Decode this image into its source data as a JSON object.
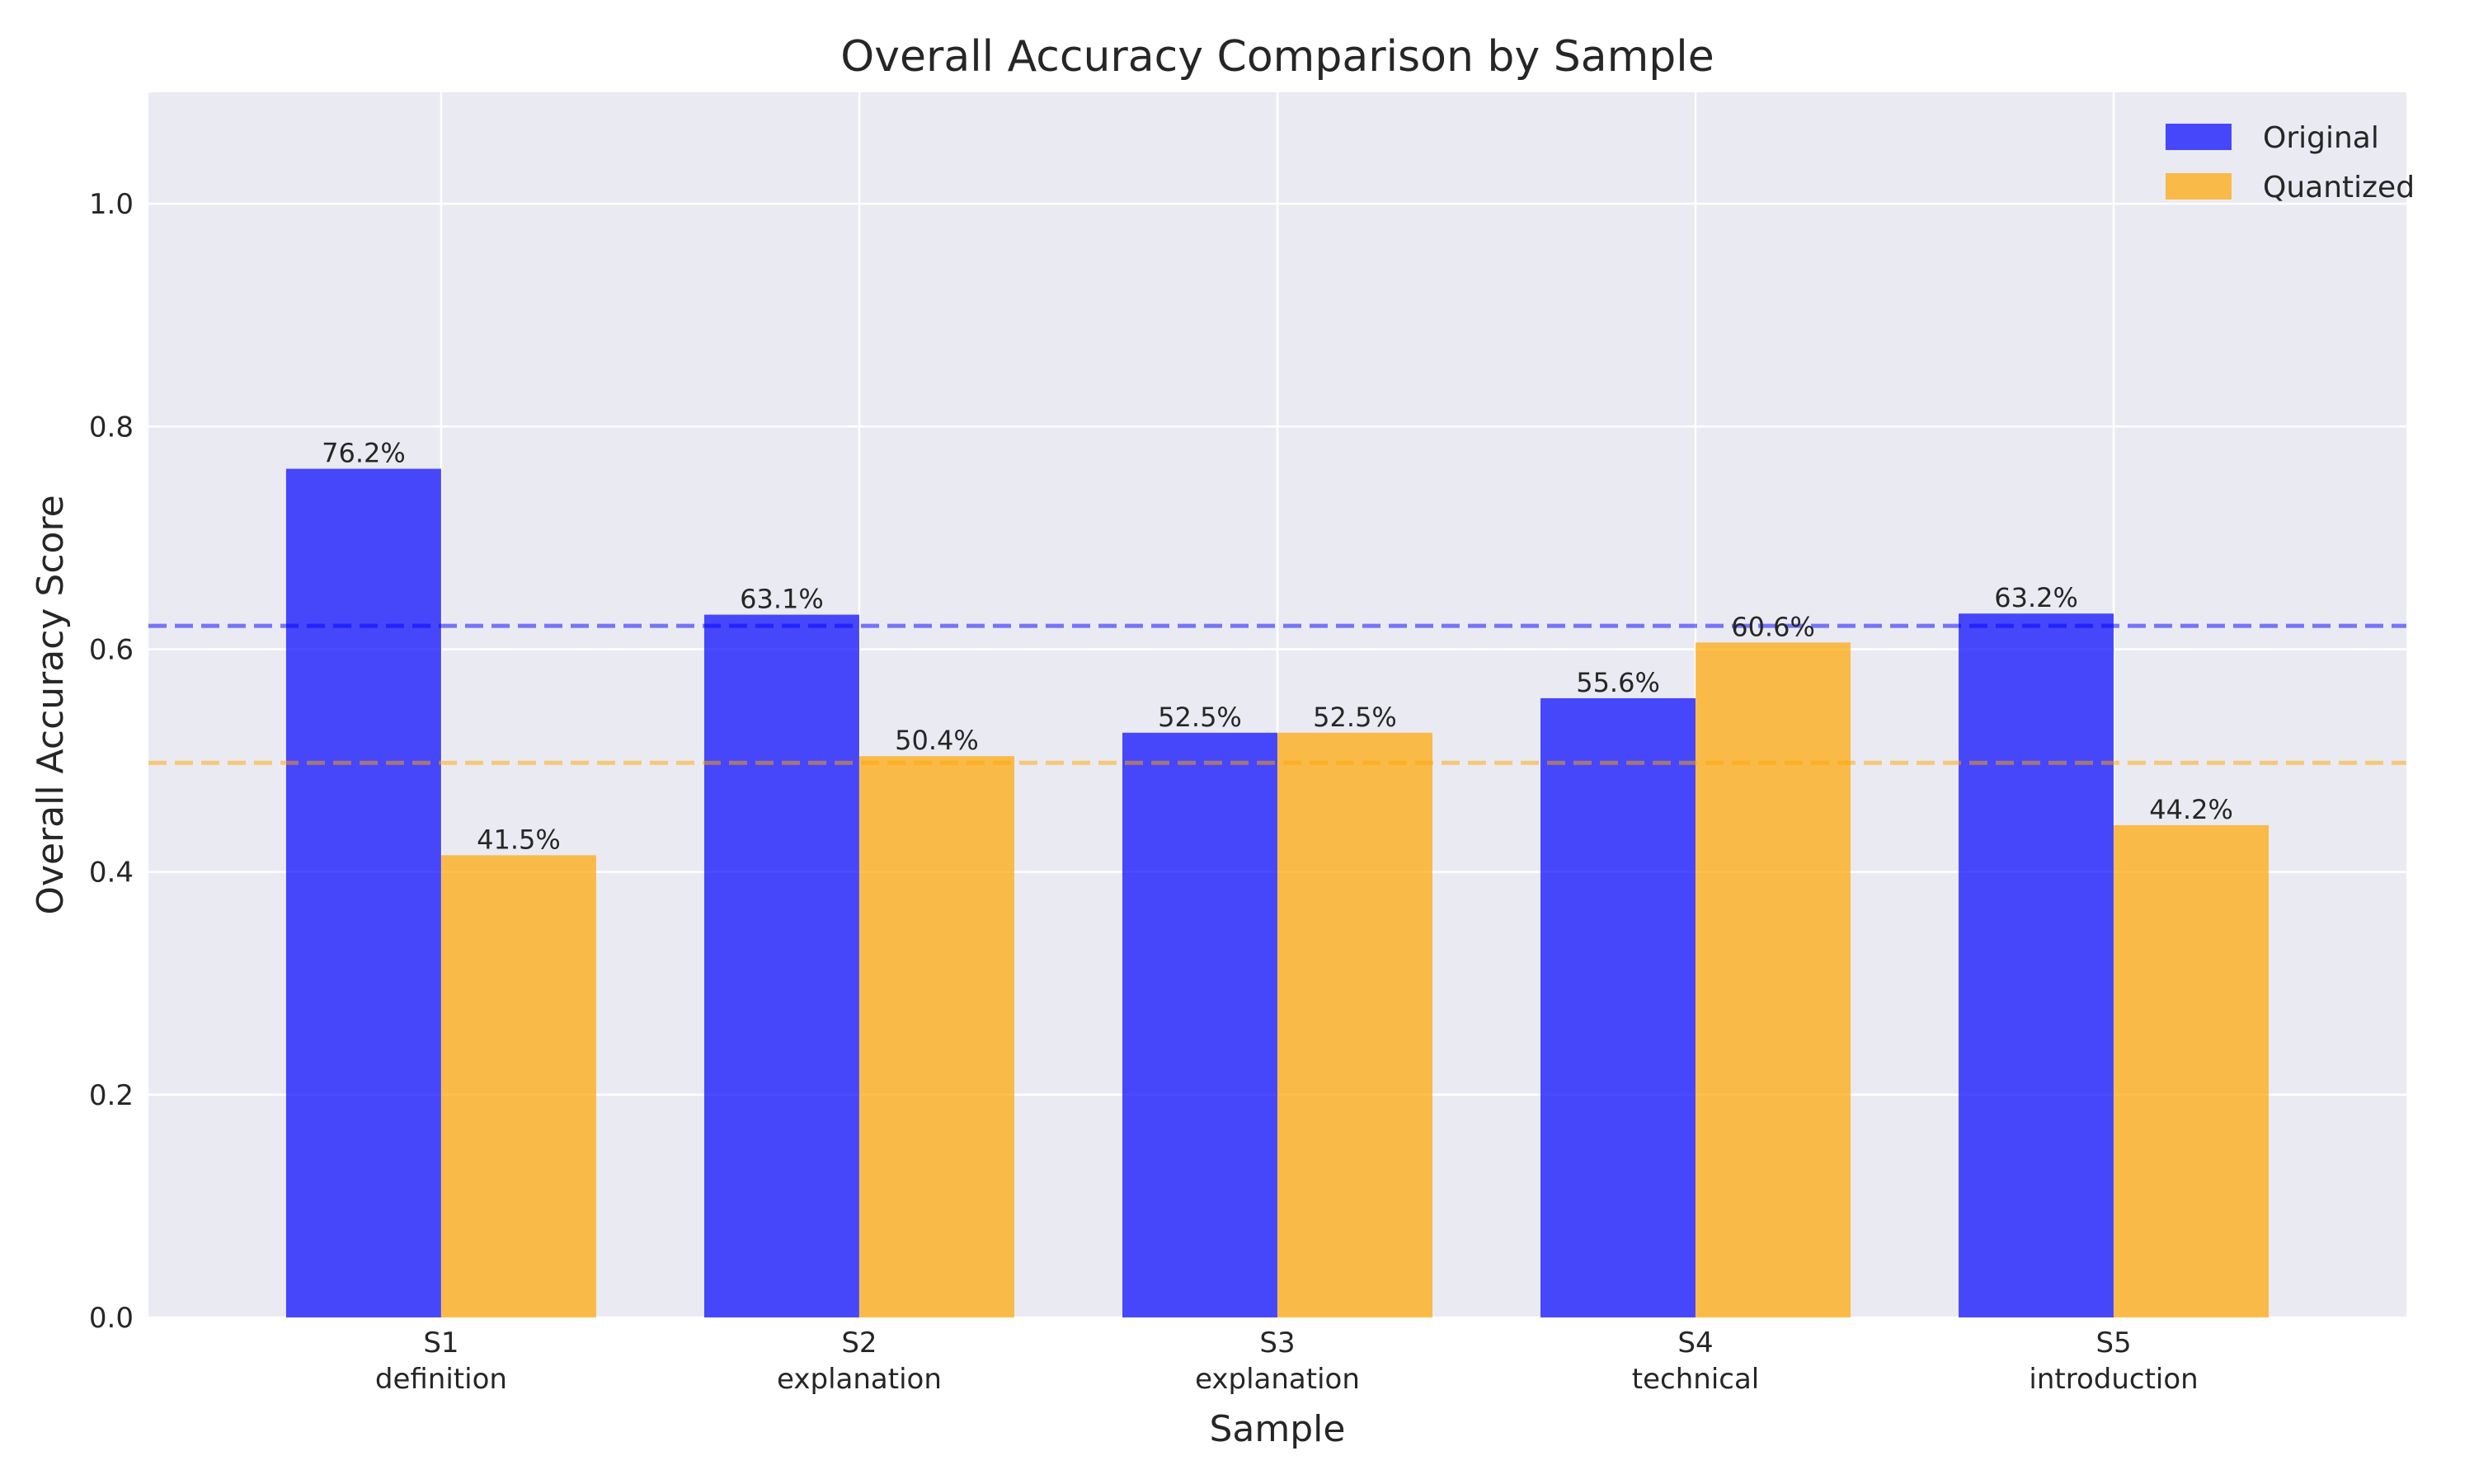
{
  "chart_data": {
    "type": "bar",
    "title": "Overall Accuracy Comparison by Sample",
    "xlabel": "Sample",
    "ylabel": "Overall Accuracy Score",
    "categories": [
      {
        "id": "S1",
        "sub": "definition"
      },
      {
        "id": "S2",
        "sub": "explanation"
      },
      {
        "id": "S3",
        "sub": "explanation"
      },
      {
        "id": "S4",
        "sub": "technical"
      },
      {
        "id": "S5",
        "sub": "introduction"
      }
    ],
    "series": [
      {
        "name": "Original",
        "color": "#0000ff",
        "alpha": 0.7,
        "values": [
          0.762,
          0.631,
          0.525,
          0.556,
          0.632
        ],
        "labels": [
          "76.2%",
          "63.1%",
          "52.5%",
          "55.6%",
          "63.2%"
        ],
        "mean_line": 0.621
      },
      {
        "name": "Quantized",
        "color": "#ffa500",
        "alpha": 0.7,
        "values": [
          0.415,
          0.504,
          0.525,
          0.606,
          0.442
        ],
        "labels": [
          "41.5%",
          "50.4%",
          "52.5%",
          "60.6%",
          "44.2%"
        ],
        "mean_line": 0.498
      }
    ],
    "ylim": [
      0,
      1.1
    ],
    "yticks": [
      "0.0",
      "0.2",
      "0.4",
      "0.6",
      "0.8",
      "1.0"
    ],
    "ytick_values": [
      0,
      0.2,
      0.4,
      0.6,
      0.8,
      1.0
    ],
    "grid": true,
    "legend_position": "top-right",
    "background": "#eaeaf2"
  }
}
